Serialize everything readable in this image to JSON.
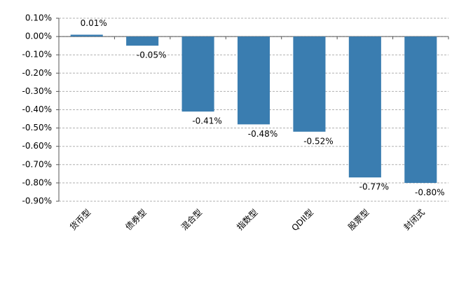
{
  "chart_data": {
    "type": "bar",
    "categories": [
      "货币型",
      "债券型",
      "混合型",
      "指数型",
      "QDII型",
      "股票型",
      "封闭式"
    ],
    "values": [
      0.01,
      -0.05,
      -0.41,
      -0.48,
      -0.52,
      -0.77,
      -0.8
    ],
    "value_labels": [
      "0.01%",
      "-0.05%",
      "-0.41%",
      "-0.48%",
      "-0.52%",
      "-0.77%",
      "-0.80%"
    ],
    "color": "#3a7db0",
    "ylim": [
      -0.9,
      0.1
    ],
    "yticks": [
      {
        "value": 0.1,
        "label": "0.10%"
      },
      {
        "value": 0,
        "label": "0.00%"
      },
      {
        "value": -0.1,
        "label": "-0.10%"
      },
      {
        "value": -0.2,
        "label": "-0.20%"
      },
      {
        "value": -0.3,
        "label": "-0.30%"
      },
      {
        "value": -0.4,
        "label": "-0.40%"
      },
      {
        "value": -0.5,
        "label": "-0.50%"
      },
      {
        "value": -0.6,
        "label": "-0.60%"
      },
      {
        "value": -0.7,
        "label": "-0.70%"
      },
      {
        "value": -0.8,
        "label": "-0.80%"
      },
      {
        "value": -0.9,
        "label": "-0.90%"
      }
    ],
    "grid": true
  }
}
